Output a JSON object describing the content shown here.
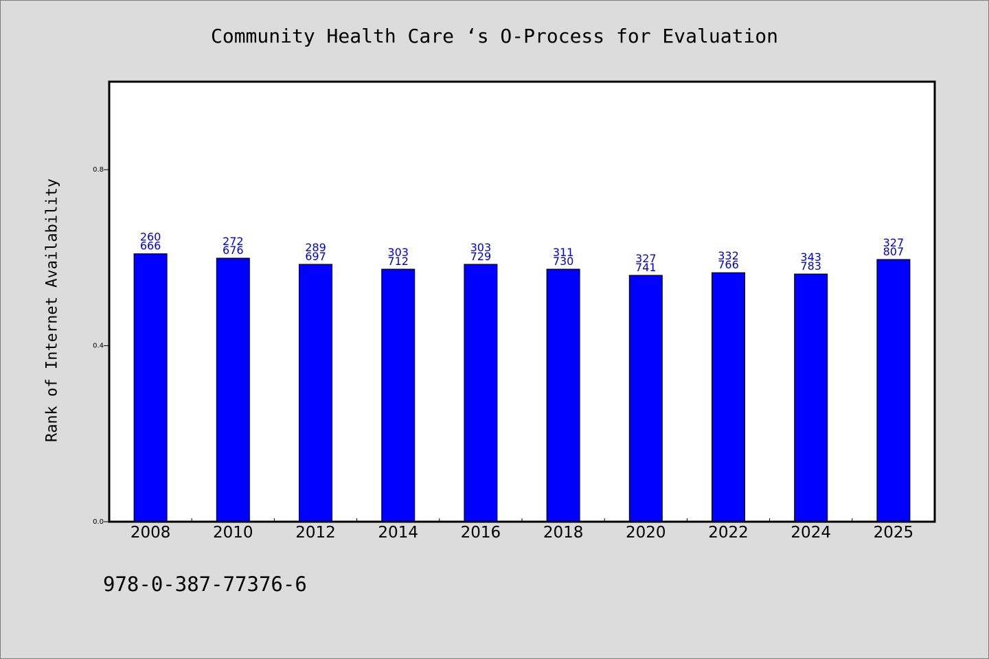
{
  "chart_data": {
    "type": "bar",
    "title": "Community Health Care ‘s O-Process for Evaluation",
    "xlabel": "",
    "ylabel": "Rank of Internet Availability",
    "ylim": [
      0.0,
      1.0
    ],
    "yticks": [
      "0.0",
      "0.4",
      "0.8"
    ],
    "categories": [
      "2008",
      "2010",
      "2012",
      "2014",
      "2016",
      "2018",
      "2020",
      "2022",
      "2024",
      "2025"
    ],
    "values": [
      0.609,
      0.599,
      0.585,
      0.574,
      0.585,
      0.574,
      0.56,
      0.566,
      0.563,
      0.596
    ],
    "labels_top": [
      "260",
      "272",
      "289",
      "303",
      "303",
      "311",
      "327",
      "332",
      "343",
      "327"
    ],
    "labels_bottom": [
      "666",
      "676",
      "697",
      "712",
      "729",
      "730",
      "741",
      "766",
      "783",
      "807"
    ],
    "bar_color": "#0000ff",
    "label_color": "#0000cc",
    "grid": false,
    "legend": "none"
  },
  "footer": {
    "code": "978-0-387-77376-6"
  }
}
